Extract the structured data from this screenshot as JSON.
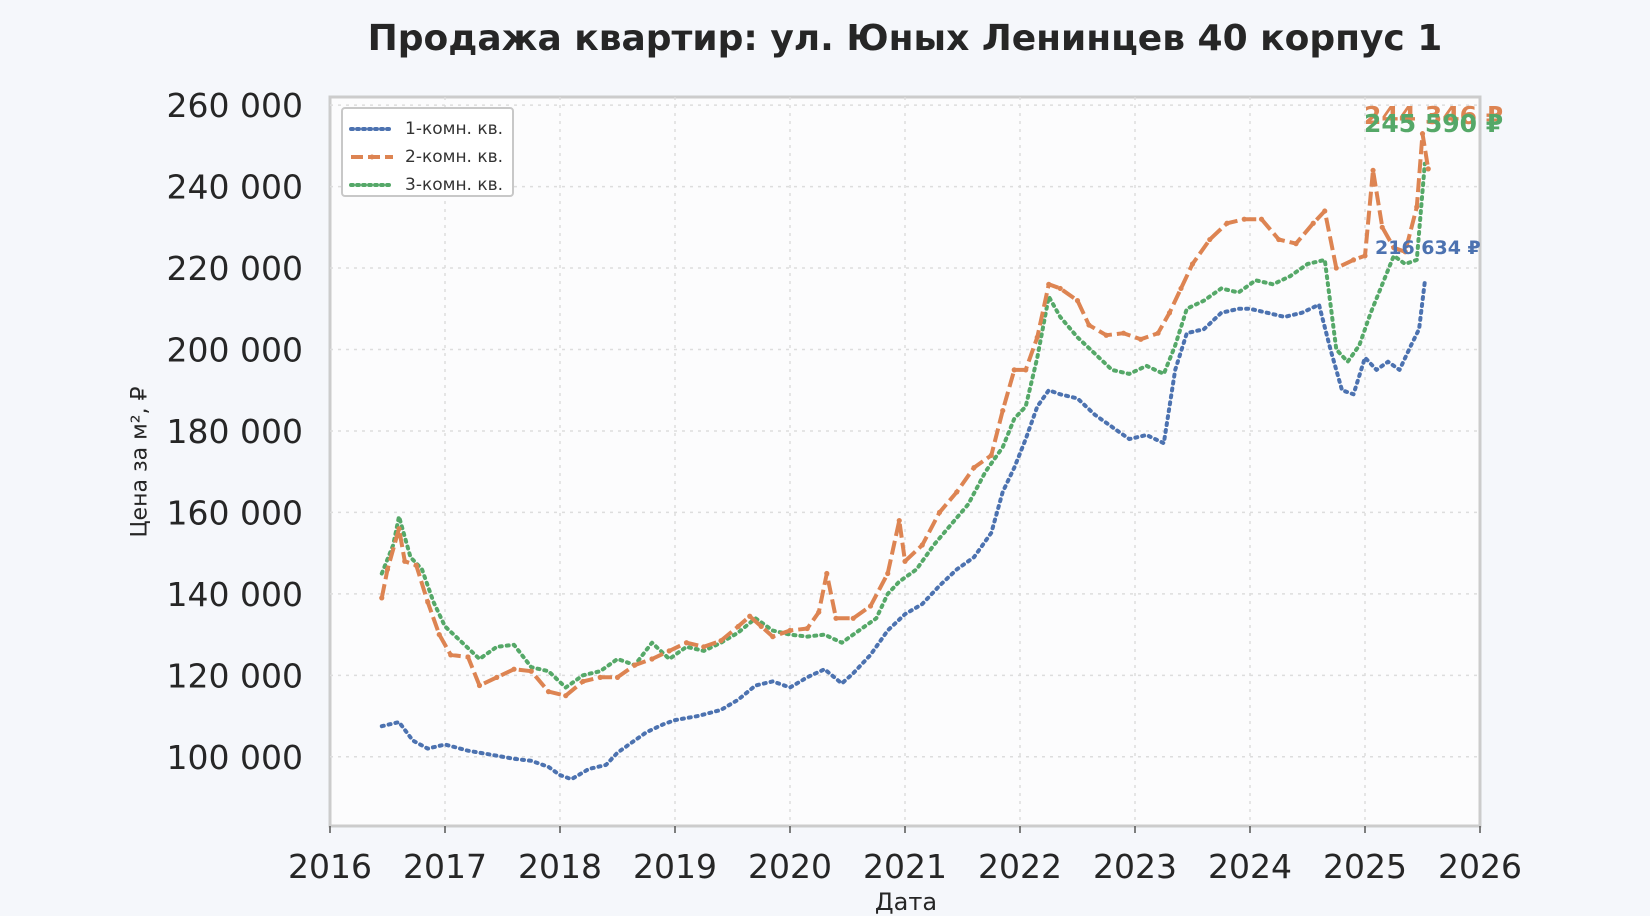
{
  "chart_data": {
    "type": "line",
    "title": "Продажа квартир: ул. Юных Ленинцев 40 корпус 1",
    "xlabel": "Дата",
    "ylabel": "Цена за м², ₽",
    "xlim": [
      2016,
      2026
    ],
    "ylim": [
      83000,
      262000
    ],
    "x_ticks": [
      "2016",
      "2017",
      "2018",
      "2019",
      "2020",
      "2021",
      "2022",
      "2023",
      "2024",
      "2025",
      "2026"
    ],
    "y_ticks": [
      "100 000",
      "120 000",
      "140 000",
      "160 000",
      "180 000",
      "200 000",
      "220 000",
      "240 000",
      "260 000"
    ],
    "grid": true,
    "legend_position": "top-left",
    "series": [
      {
        "name": "1-комн. кв.",
        "color": "#4c72b0",
        "style": "dotted",
        "end_label": "216 634 ₽",
        "points": [
          [
            2016.45,
            107500
          ],
          [
            2016.6,
            108500
          ],
          [
            2016.72,
            104000
          ],
          [
            2016.85,
            102000
          ],
          [
            2017.0,
            103000
          ],
          [
            2017.2,
            101500
          ],
          [
            2017.4,
            100500
          ],
          [
            2017.6,
            99500
          ],
          [
            2017.75,
            99000
          ],
          [
            2017.9,
            97500
          ],
          [
            2018.0,
            95500
          ],
          [
            2018.1,
            94500
          ],
          [
            2018.25,
            97000
          ],
          [
            2018.4,
            98000
          ],
          [
            2018.5,
            101000
          ],
          [
            2018.6,
            103000
          ],
          [
            2018.75,
            106000
          ],
          [
            2018.9,
            108000
          ],
          [
            2019.0,
            109000
          ],
          [
            2019.2,
            110000
          ],
          [
            2019.4,
            111500
          ],
          [
            2019.55,
            114000
          ],
          [
            2019.7,
            117500
          ],
          [
            2019.85,
            118500
          ],
          [
            2020.0,
            117000
          ],
          [
            2020.15,
            119500
          ],
          [
            2020.3,
            121500
          ],
          [
            2020.45,
            118000
          ],
          [
            2020.55,
            120500
          ],
          [
            2020.7,
            125000
          ],
          [
            2020.85,
            131000
          ],
          [
            2021.0,
            135000
          ],
          [
            2021.15,
            137500
          ],
          [
            2021.3,
            142000
          ],
          [
            2021.45,
            146000
          ],
          [
            2021.6,
            149000
          ],
          [
            2021.75,
            155000
          ],
          [
            2021.85,
            165000
          ],
          [
            2021.95,
            171000
          ],
          [
            2022.05,
            178000
          ],
          [
            2022.15,
            186000
          ],
          [
            2022.25,
            190000
          ],
          [
            2022.35,
            189000
          ],
          [
            2022.5,
            188000
          ],
          [
            2022.65,
            184000
          ],
          [
            2022.8,
            181000
          ],
          [
            2022.95,
            178000
          ],
          [
            2023.1,
            179000
          ],
          [
            2023.25,
            177000
          ],
          [
            2023.35,
            195000
          ],
          [
            2023.45,
            204000
          ],
          [
            2023.6,
            205000
          ],
          [
            2023.75,
            209000
          ],
          [
            2023.9,
            210000
          ],
          [
            2024.0,
            210000
          ],
          [
            2024.15,
            209000
          ],
          [
            2024.3,
            208000
          ],
          [
            2024.45,
            209000
          ],
          [
            2024.6,
            211000
          ],
          [
            2024.7,
            200000
          ],
          [
            2024.8,
            190000
          ],
          [
            2024.9,
            189000
          ],
          [
            2025.0,
            198000
          ],
          [
            2025.1,
            195000
          ],
          [
            2025.2,
            197000
          ],
          [
            2025.3,
            195000
          ],
          [
            2025.4,
            201000
          ],
          [
            2025.47,
            205000
          ],
          [
            2025.52,
            216634
          ]
        ]
      },
      {
        "name": "2-комн. кв.",
        "color": "#dd8452",
        "style": "dashed-markers",
        "end_label": "244 346 ₽",
        "points": [
          [
            2016.45,
            139000
          ],
          [
            2016.5,
            146000
          ],
          [
            2016.6,
            156000
          ],
          [
            2016.65,
            148000
          ],
          [
            2016.75,
            147000
          ],
          [
            2016.85,
            138000
          ],
          [
            2016.95,
            130000
          ],
          [
            2017.05,
            125000
          ],
          [
            2017.2,
            124500
          ],
          [
            2017.3,
            117500
          ],
          [
            2017.45,
            119500
          ],
          [
            2017.6,
            121500
          ],
          [
            2017.75,
            121000
          ],
          [
            2017.9,
            116000
          ],
          [
            2018.05,
            115000
          ],
          [
            2018.2,
            118500
          ],
          [
            2018.35,
            119500
          ],
          [
            2018.5,
            119500
          ],
          [
            2018.65,
            122500
          ],
          [
            2018.8,
            124000
          ],
          [
            2018.95,
            126000
          ],
          [
            2019.1,
            128000
          ],
          [
            2019.25,
            127000
          ],
          [
            2019.4,
            128500
          ],
          [
            2019.55,
            132000
          ],
          [
            2019.65,
            134500
          ],
          [
            2019.75,
            132000
          ],
          [
            2019.85,
            129500
          ],
          [
            2020.0,
            131000
          ],
          [
            2020.15,
            131500
          ],
          [
            2020.25,
            135500
          ],
          [
            2020.32,
            145000
          ],
          [
            2020.4,
            134000
          ],
          [
            2020.55,
            134000
          ],
          [
            2020.7,
            137000
          ],
          [
            2020.85,
            145000
          ],
          [
            2020.95,
            158000
          ],
          [
            2021.0,
            148000
          ],
          [
            2021.15,
            152000
          ],
          [
            2021.3,
            160000
          ],
          [
            2021.45,
            165000
          ],
          [
            2021.6,
            171000
          ],
          [
            2021.75,
            174000
          ],
          [
            2021.85,
            185000
          ],
          [
            2021.95,
            195000
          ],
          [
            2022.05,
            195000
          ],
          [
            2022.15,
            203000
          ],
          [
            2022.25,
            216000
          ],
          [
            2022.35,
            215000
          ],
          [
            2022.5,
            212000
          ],
          [
            2022.6,
            206000
          ],
          [
            2022.75,
            203500
          ],
          [
            2022.9,
            204000
          ],
          [
            2023.05,
            202500
          ],
          [
            2023.2,
            204000
          ],
          [
            2023.3,
            209000
          ],
          [
            2023.4,
            215000
          ],
          [
            2023.5,
            221000
          ],
          [
            2023.65,
            227000
          ],
          [
            2023.8,
            231000
          ],
          [
            2023.95,
            232000
          ],
          [
            2024.1,
            232000
          ],
          [
            2024.25,
            227000
          ],
          [
            2024.4,
            226000
          ],
          [
            2024.55,
            231000
          ],
          [
            2024.65,
            234000
          ],
          [
            2024.75,
            220000
          ],
          [
            2024.9,
            222000
          ],
          [
            2025.0,
            223000
          ],
          [
            2025.07,
            244000
          ],
          [
            2025.15,
            230000
          ],
          [
            2025.25,
            225000
          ],
          [
            2025.35,
            224000
          ],
          [
            2025.45,
            235000
          ],
          [
            2025.5,
            253000
          ],
          [
            2025.55,
            244346
          ]
        ]
      },
      {
        "name": "3-комн. кв.",
        "color": "#55a868",
        "style": "dotted",
        "end_label": "245 590 ₽",
        "points": [
          [
            2016.45,
            145000
          ],
          [
            2016.55,
            152000
          ],
          [
            2016.6,
            159000
          ],
          [
            2016.7,
            149000
          ],
          [
            2016.8,
            146000
          ],
          [
            2016.9,
            138000
          ],
          [
            2017.0,
            132000
          ],
          [
            2017.15,
            128000
          ],
          [
            2017.3,
            124000
          ],
          [
            2017.45,
            127000
          ],
          [
            2017.6,
            127500
          ],
          [
            2017.75,
            122000
          ],
          [
            2017.9,
            121000
          ],
          [
            2018.05,
            117000
          ],
          [
            2018.2,
            120000
          ],
          [
            2018.35,
            121000
          ],
          [
            2018.5,
            124000
          ],
          [
            2018.65,
            122500
          ],
          [
            2018.8,
            128000
          ],
          [
            2018.95,
            124000
          ],
          [
            2019.1,
            127000
          ],
          [
            2019.25,
            126000
          ],
          [
            2019.4,
            128000
          ],
          [
            2019.55,
            130500
          ],
          [
            2019.7,
            134000
          ],
          [
            2019.85,
            131000
          ],
          [
            2020.0,
            130000
          ],
          [
            2020.15,
            129500
          ],
          [
            2020.3,
            130000
          ],
          [
            2020.45,
            128000
          ],
          [
            2020.6,
            131000
          ],
          [
            2020.75,
            134000
          ],
          [
            2020.85,
            140000
          ],
          [
            2020.95,
            143000
          ],
          [
            2021.1,
            146000
          ],
          [
            2021.25,
            152000
          ],
          [
            2021.4,
            157000
          ],
          [
            2021.55,
            162000
          ],
          [
            2021.7,
            170000
          ],
          [
            2021.85,
            176000
          ],
          [
            2021.95,
            183000
          ],
          [
            2022.05,
            186000
          ],
          [
            2022.15,
            198000
          ],
          [
            2022.25,
            213000
          ],
          [
            2022.35,
            208000
          ],
          [
            2022.5,
            203000
          ],
          [
            2022.65,
            199000
          ],
          [
            2022.8,
            195000
          ],
          [
            2022.95,
            194000
          ],
          [
            2023.1,
            196000
          ],
          [
            2023.25,
            194000
          ],
          [
            2023.35,
            201000
          ],
          [
            2023.45,
            210000
          ],
          [
            2023.6,
            212000
          ],
          [
            2023.75,
            215000
          ],
          [
            2023.9,
            214000
          ],
          [
            2024.05,
            217000
          ],
          [
            2024.2,
            216000
          ],
          [
            2024.35,
            218000
          ],
          [
            2024.5,
            221000
          ],
          [
            2024.65,
            222000
          ],
          [
            2024.75,
            200000
          ],
          [
            2024.85,
            197000
          ],
          [
            2024.95,
            201000
          ],
          [
            2025.05,
            209000
          ],
          [
            2025.15,
            216000
          ],
          [
            2025.25,
            223000
          ],
          [
            2025.35,
            221000
          ],
          [
            2025.45,
            222000
          ],
          [
            2025.52,
            245590
          ]
        ]
      }
    ]
  }
}
